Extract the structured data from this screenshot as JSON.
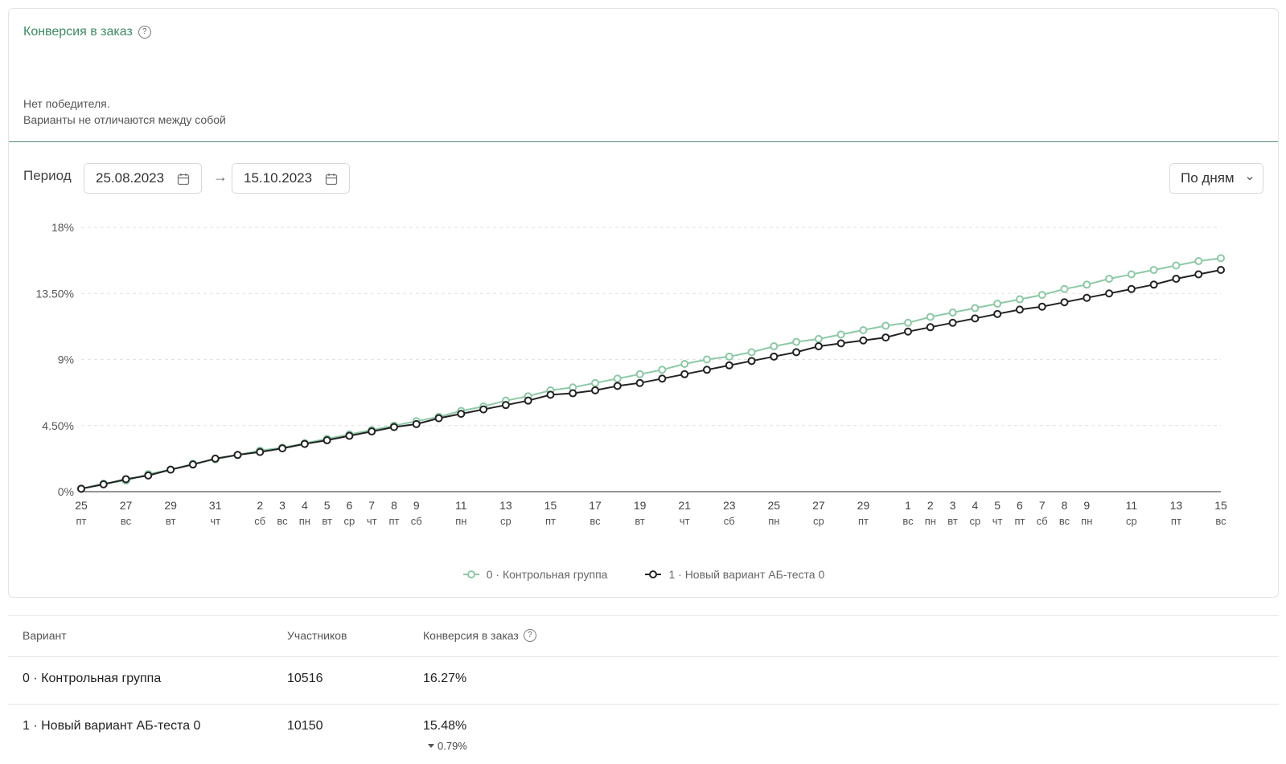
{
  "card": {
    "title": "Конверсия в заказ",
    "help_icon_glyph": "?",
    "result_line1": "Нет победителя.",
    "result_line2": "Варианты не отличаются между собой"
  },
  "period": {
    "label": "Период",
    "from": "25.08.2023",
    "to": "15.10.2023",
    "arrow": "→",
    "grouping": "По дням"
  },
  "colors": {
    "accent": "#3e8a63",
    "control": "#8cc9a5",
    "variant": "#222222"
  },
  "chart_data": {
    "type": "line",
    "title": "",
    "xlabel": "",
    "ylabel": "",
    "ylim": [
      0,
      18
    ],
    "yticks": [
      "0%",
      "4.50%",
      "9%",
      "13.50%",
      "18%"
    ],
    "x": [
      "25.08",
      "26.08",
      "27.08",
      "28.08",
      "29.08",
      "30.08",
      "31.08",
      "01.09",
      "02.09",
      "03.09",
      "04.09",
      "05.09",
      "06.09",
      "07.09",
      "08.09",
      "09.09",
      "10.09",
      "11.09",
      "12.09",
      "13.09",
      "14.09",
      "15.09",
      "16.09",
      "17.09",
      "18.09",
      "19.09",
      "20.09",
      "21.09",
      "22.09",
      "23.09",
      "24.09",
      "25.09",
      "26.09",
      "27.09",
      "28.09",
      "29.09",
      "30.09",
      "01.10",
      "02.10",
      "03.10",
      "04.10",
      "05.10",
      "06.10",
      "07.10",
      "08.10",
      "09.10",
      "10.10",
      "11.10",
      "12.10",
      "13.10",
      "14.10",
      "15.10"
    ],
    "xticks": [
      {
        "i": 0,
        "day": "25",
        "wd": "пт"
      },
      {
        "i": 2,
        "day": "27",
        "wd": "вс"
      },
      {
        "i": 4,
        "day": "29",
        "wd": "вт"
      },
      {
        "i": 6,
        "day": "31",
        "wd": "чт"
      },
      {
        "i": 8,
        "day": "2",
        "wd": "сб"
      },
      {
        "i": 9,
        "day": "3",
        "wd": "вс"
      },
      {
        "i": 10,
        "day": "4",
        "wd": "пн"
      },
      {
        "i": 11,
        "day": "5",
        "wd": "вт"
      },
      {
        "i": 12,
        "day": "6",
        "wd": "ср"
      },
      {
        "i": 13,
        "day": "7",
        "wd": "чт"
      },
      {
        "i": 14,
        "day": "8",
        "wd": "пт"
      },
      {
        "i": 15,
        "day": "9",
        "wd": "сб"
      },
      {
        "i": 17,
        "day": "11",
        "wd": "пн"
      },
      {
        "i": 19,
        "day": "13",
        "wd": "ср"
      },
      {
        "i": 21,
        "day": "15",
        "wd": "пт"
      },
      {
        "i": 23,
        "day": "17",
        "wd": "вс"
      },
      {
        "i": 25,
        "day": "19",
        "wd": "вт"
      },
      {
        "i": 27,
        "day": "21",
        "wd": "чт"
      },
      {
        "i": 29,
        "day": "23",
        "wd": "сб"
      },
      {
        "i": 31,
        "day": "25",
        "wd": "пн"
      },
      {
        "i": 33,
        "day": "27",
        "wd": "ср"
      },
      {
        "i": 35,
        "day": "29",
        "wd": "пт"
      },
      {
        "i": 37,
        "day": "1",
        "wd": "вс"
      },
      {
        "i": 38,
        "day": "2",
        "wd": "пн"
      },
      {
        "i": 39,
        "day": "3",
        "wd": "вт"
      },
      {
        "i": 40,
        "day": "4",
        "wd": "ср"
      },
      {
        "i": 41,
        "day": "5",
        "wd": "чт"
      },
      {
        "i": 42,
        "day": "6",
        "wd": "пт"
      },
      {
        "i": 43,
        "day": "7",
        "wd": "сб"
      },
      {
        "i": 44,
        "day": "8",
        "wd": "вс"
      },
      {
        "i": 45,
        "day": "9",
        "wd": "пн"
      },
      {
        "i": 47,
        "day": "11",
        "wd": "ср"
      },
      {
        "i": 49,
        "day": "13",
        "wd": "пт"
      },
      {
        "i": 51,
        "day": "15",
        "wd": "вс"
      }
    ],
    "series": [
      {
        "name": "0 · Контрольная группа",
        "color": "#8cc9a5",
        "values": [
          0.2,
          0.55,
          0.75,
          1.2,
          1.5,
          1.9,
          2.2,
          2.5,
          2.8,
          3.0,
          3.3,
          3.6,
          3.9,
          4.2,
          4.5,
          4.8,
          5.1,
          5.5,
          5.8,
          6.2,
          6.5,
          6.9,
          7.1,
          7.4,
          7.7,
          8.0,
          8.3,
          8.7,
          9.0,
          9.2,
          9.5,
          9.9,
          10.2,
          10.4,
          10.7,
          11.0,
          11.3,
          11.5,
          11.9,
          12.2,
          12.5,
          12.8,
          13.1,
          13.4,
          13.8,
          14.1,
          14.5,
          14.8,
          15.1,
          15.4,
          15.7,
          15.9
        ]
      },
      {
        "name": "1 · Новый вариант АБ-теста 0",
        "color": "#222222",
        "values": [
          0.2,
          0.5,
          0.85,
          1.1,
          1.5,
          1.85,
          2.25,
          2.5,
          2.7,
          2.95,
          3.25,
          3.5,
          3.8,
          4.1,
          4.4,
          4.6,
          5.0,
          5.3,
          5.6,
          5.9,
          6.2,
          6.6,
          6.7,
          6.9,
          7.2,
          7.4,
          7.7,
          8.0,
          8.3,
          8.6,
          8.9,
          9.2,
          9.5,
          9.9,
          10.1,
          10.3,
          10.5,
          10.9,
          11.2,
          11.5,
          11.8,
          12.1,
          12.4,
          12.6,
          12.9,
          13.2,
          13.5,
          13.8,
          14.1,
          14.5,
          14.8,
          15.1
        ]
      }
    ],
    "legend_position": "bottom-center",
    "grid": true
  },
  "table": {
    "headers": {
      "variant": "Вариант",
      "participants": "Участников",
      "conversion": "Конверсия в заказ"
    },
    "rows": [
      {
        "variant": "0 · Контрольная группа",
        "participants": "10516",
        "conversion": "16.27%",
        "delta": ""
      },
      {
        "variant": "1 · Новый вариант АБ-теста 0",
        "participants": "10150",
        "conversion": "15.48%",
        "delta": "0.79%"
      }
    ]
  }
}
